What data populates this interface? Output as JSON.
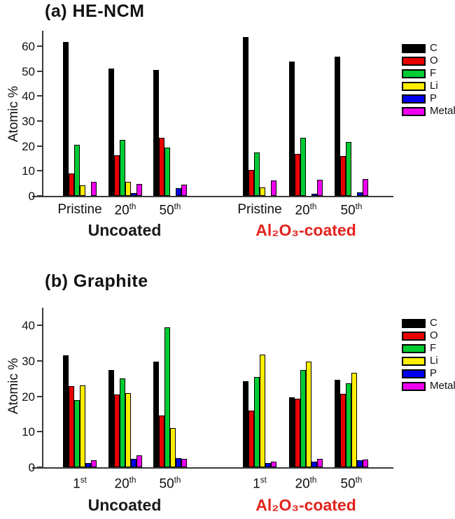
{
  "figure_background": "#ffffff",
  "text_color": "#111111",
  "axis_color": "#3a3a3a",
  "chart_data": [
    {
      "type": "bar",
      "panel_id": "a",
      "title": "(a) HE-NCM",
      "ylabel": "Atomic %",
      "ylim": [
        0,
        66
      ],
      "yticks": [
        0,
        10,
        20,
        30,
        40,
        50,
        60
      ],
      "grid": false,
      "legend_position": "right",
      "legend_entries": [
        {
          "label": "C",
          "color": "#000000"
        },
        {
          "label": "O",
          "color": "#e60000"
        },
        {
          "label": "F",
          "color": "#00cc33"
        },
        {
          "label": "Li",
          "color": "#ffee00"
        },
        {
          "label": "P",
          "color": "#0000ee"
        },
        {
          "label": "Metal",
          "color": "#ee00ee"
        }
      ],
      "sections": [
        {
          "key": "uncoated",
          "caption": "Uncoated",
          "caption_color": "#1a1a1a",
          "categories": [
            {
              "base": "Pristine",
              "sup": ""
            },
            {
              "base": "20",
              "sup": "th"
            },
            {
              "base": "50",
              "sup": "th"
            }
          ],
          "series": [
            {
              "name": "C",
              "values": [
                61.5,
                51.0,
                50.5
              ]
            },
            {
              "name": "O",
              "values": [
                9.0,
                16.2,
                23.3
              ]
            },
            {
              "name": "F",
              "values": [
                20.4,
                22.4,
                19.3
              ]
            },
            {
              "name": "Li",
              "values": [
                4.2,
                5.6,
                0
              ]
            },
            {
              "name": "P",
              "values": [
                0,
                1.0,
                3.2
              ]
            },
            {
              "name": "Metal",
              "values": [
                5.5,
                4.7,
                4.4
              ]
            }
          ]
        },
        {
          "key": "coated",
          "caption": "Al₂O₃-coated",
          "caption_color": "#e3231e",
          "categories": [
            {
              "base": "Pristine",
              "sup": ""
            },
            {
              "base": "20",
              "sup": "th"
            },
            {
              "base": "50",
              "sup": "th"
            }
          ],
          "series": [
            {
              "name": "C",
              "values": [
                63.5,
                53.7,
                55.8
              ]
            },
            {
              "name": "O",
              "values": [
                10.5,
                16.7,
                16.0
              ]
            },
            {
              "name": "F",
              "values": [
                17.3,
                23.2,
                21.5
              ]
            },
            {
              "name": "Li",
              "values": [
                3.4,
                0,
                0
              ]
            },
            {
              "name": "P",
              "values": [
                0,
                0.8,
                1.3
              ]
            },
            {
              "name": "Metal",
              "values": [
                6.2,
                6.4,
                6.6
              ]
            }
          ]
        }
      ]
    },
    {
      "type": "bar",
      "panel_id": "b",
      "title": "(b) Graphite",
      "ylabel": "Atomic %",
      "ylim": [
        0,
        45
      ],
      "yticks": [
        0,
        10,
        20,
        30,
        40
      ],
      "grid": false,
      "legend_position": "right",
      "legend_entries": [
        {
          "label": "C",
          "color": "#000000"
        },
        {
          "label": "O",
          "color": "#e60000"
        },
        {
          "label": "F",
          "color": "#00cc33"
        },
        {
          "label": "Li",
          "color": "#ffee00"
        },
        {
          "label": "P",
          "color": "#0000ee"
        },
        {
          "label": "Metal",
          "color": "#ee00ee"
        }
      ],
      "sections": [
        {
          "key": "uncoated",
          "caption": "Uncoated",
          "caption_color": "#1a1a1a",
          "categories": [
            {
              "base": "1",
              "sup": "st"
            },
            {
              "base": "20",
              "sup": "th"
            },
            {
              "base": "50",
              "sup": "th"
            }
          ],
          "series": [
            {
              "name": "C",
              "values": [
                31.6,
                27.4,
                29.7
              ]
            },
            {
              "name": "O",
              "values": [
                22.9,
                20.5,
                14.5
              ]
            },
            {
              "name": "F",
              "values": [
                18.9,
                25.0,
                39.4
              ]
            },
            {
              "name": "Li",
              "values": [
                23.1,
                20.9,
                11.0
              ]
            },
            {
              "name": "P",
              "values": [
                1.2,
                2.4,
                2.6
              ]
            },
            {
              "name": "Metal",
              "values": [
                1.9,
                3.4,
                2.3
              ]
            }
          ]
        },
        {
          "key": "coated",
          "caption": "Al₂O₃-coated",
          "caption_color": "#e3231e",
          "categories": [
            {
              "base": "1",
              "sup": "st"
            },
            {
              "base": "20",
              "sup": "th"
            },
            {
              "base": "50",
              "sup": "th"
            }
          ],
          "series": [
            {
              "name": "C",
              "values": [
                24.2,
                19.7,
                24.6
              ]
            },
            {
              "name": "O",
              "values": [
                16.0,
                19.3,
                20.7
              ]
            },
            {
              "name": "F",
              "values": [
                25.4,
                27.4,
                23.6
              ]
            },
            {
              "name": "Li",
              "values": [
                31.7,
                29.7,
                26.6
              ]
            },
            {
              "name": "P",
              "values": [
                1.2,
                1.5,
                2.0
              ]
            },
            {
              "name": "Metal",
              "values": [
                1.5,
                2.4,
                2.1
              ]
            }
          ]
        }
      ]
    }
  ]
}
